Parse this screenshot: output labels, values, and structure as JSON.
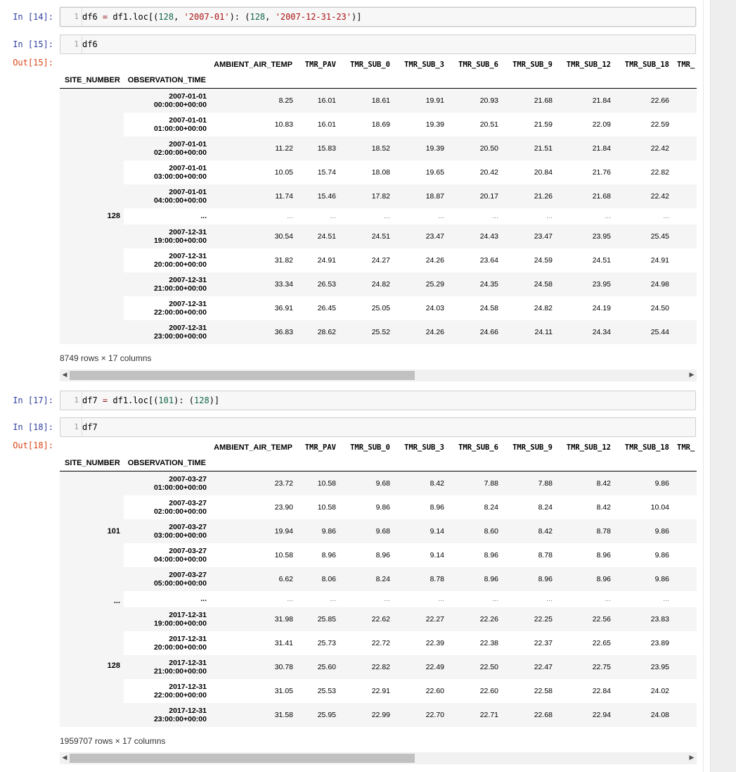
{
  "cells": [
    {
      "type": "code",
      "prompt": "In [14]:",
      "line": "1",
      "code": {
        "var": "df6",
        "op": " = ",
        "pre": "df1.loc[(",
        "n1": "128",
        "s1": "'2007-01'",
        "mid": "): (",
        "n2": "128",
        "s2": "'2007-12-31-23'",
        "post": ")]",
        "comma": ", "
      }
    },
    {
      "type": "code",
      "prompt": "In [15]:",
      "line": "1",
      "code": "df6"
    },
    {
      "type": "code",
      "prompt": "In [17]:",
      "line": "1",
      "code": {
        "var": "df7",
        "op": " = ",
        "pre": "df1.loc[(",
        "n1": "101",
        "mid": "): (",
        "n2": "128",
        "post": ")]"
      }
    },
    {
      "type": "code",
      "prompt": "In [18]:",
      "line": "1",
      "code": "df7"
    }
  ],
  "outputs": [
    {
      "prompt": "Out[15]:",
      "columns": [
        "AMBIENT_AIR_TEMP",
        "TMR_PAV",
        "TMR_SUB_0",
        "TMR_SUB_3",
        "TMR_SUB_6",
        "TMR_SUB_9",
        "TMR_SUB_12",
        "TMR_SUB_18",
        "TMR_"
      ],
      "index_names": [
        "SITE_NUMBER",
        "OBSERVATION_TIME"
      ],
      "level0_labels": [
        {
          "label": "128"
        }
      ],
      "ellipsis": "...",
      "rows": [
        {
          "d": "2007-01-01",
          "t": "00:00:00+00:00",
          "v": [
            "8.25",
            "16.01",
            "18.61",
            "19.91",
            "20.93",
            "21.68",
            "21.84",
            "22.66"
          ]
        },
        {
          "d": "2007-01-01",
          "t": "01:00:00+00:00",
          "v": [
            "10.83",
            "16.01",
            "18.69",
            "19.39",
            "20.51",
            "21.59",
            "22.09",
            "22.59"
          ]
        },
        {
          "d": "2007-01-01",
          "t": "02:00:00+00:00",
          "v": [
            "11.22",
            "15.83",
            "18.52",
            "19.39",
            "20.50",
            "21.51",
            "21.84",
            "22.42"
          ]
        },
        {
          "d": "2007-01-01",
          "t": "03:00:00+00:00",
          "v": [
            "10.05",
            "15.74",
            "18.08",
            "19.65",
            "20.42",
            "20.84",
            "21.76",
            "22.82"
          ]
        },
        {
          "d": "2007-01-01",
          "t": "04:00:00+00:00",
          "v": [
            "11.74",
            "15.46",
            "17.82",
            "18.87",
            "20.17",
            "21.26",
            "21.68",
            "22.42"
          ]
        },
        {
          "ellipsis": true
        },
        {
          "d": "2007-12-31",
          "t": "19:00:00+00:00",
          "v": [
            "30.54",
            "24.51",
            "24.51",
            "23.47",
            "24.43",
            "23.47",
            "23.95",
            "25.45"
          ]
        },
        {
          "d": "2007-12-31",
          "t": "20:00:00+00:00",
          "v": [
            "31.82",
            "24.91",
            "24.27",
            "24.26",
            "23.64",
            "24.59",
            "24.51",
            "24.91"
          ]
        },
        {
          "d": "2007-12-31",
          "t": "21:00:00+00:00",
          "v": [
            "33.34",
            "26.53",
            "24.82",
            "25.29",
            "24.35",
            "24.58",
            "23.95",
            "24.98"
          ]
        },
        {
          "d": "2007-12-31",
          "t": "22:00:00+00:00",
          "v": [
            "36.91",
            "26.45",
            "25.05",
            "24.03",
            "24.58",
            "24.82",
            "24.19",
            "24.50"
          ]
        },
        {
          "d": "2007-12-31",
          "t": "23:00:00+00:00",
          "v": [
            "36.83",
            "28.62",
            "25.52",
            "24.26",
            "24.66",
            "24.11",
            "24.34",
            "25.44"
          ]
        }
      ],
      "summary": "8749 rows × 17 columns"
    },
    {
      "prompt": "Out[18]:",
      "columns": [
        "AMBIENT_AIR_TEMP",
        "TMR_PAV",
        "TMR_SUB_0",
        "TMR_SUB_3",
        "TMR_SUB_6",
        "TMR_SUB_9",
        "TMR_SUB_12",
        "TMR_SUB_18",
        "TMR_"
      ],
      "index_names": [
        "SITE_NUMBER",
        "OBSERVATION_TIME"
      ],
      "level0_labels": [
        {
          "label": "101"
        },
        {
          "label": "..."
        },
        {
          "label": "128"
        }
      ],
      "ellipsis": "...",
      "rows": [
        {
          "d": "2007-03-27",
          "t": "01:00:00+00:00",
          "v": [
            "23.72",
            "10.58",
            "9.68",
            "8.42",
            "7.88",
            "7.88",
            "8.42",
            "9.86"
          ]
        },
        {
          "d": "2007-03-27",
          "t": "02:00:00+00:00",
          "v": [
            "23.90",
            "10.58",
            "9.86",
            "8.96",
            "8.24",
            "8.24",
            "8.42",
            "10.04"
          ]
        },
        {
          "d": "2007-03-27",
          "t": "03:00:00+00:00",
          "v": [
            "19.94",
            "9.86",
            "9.68",
            "9.14",
            "8.60",
            "8.42",
            "8.78",
            "9.86"
          ]
        },
        {
          "d": "2007-03-27",
          "t": "04:00:00+00:00",
          "v": [
            "10.58",
            "8.96",
            "8.96",
            "9.14",
            "8.96",
            "8.78",
            "8.96",
            "9.86"
          ]
        },
        {
          "d": "2007-03-27",
          "t": "05:00:00+00:00",
          "v": [
            "6.62",
            "8.06",
            "8.24",
            "8.78",
            "8.96",
            "8.96",
            "8.96",
            "9.86"
          ]
        },
        {
          "ellipsis": true
        },
        {
          "d": "2017-12-31",
          "t": "19:00:00+00:00",
          "v": [
            "31.98",
            "25.85",
            "22.62",
            "22.27",
            "22.26",
            "22.25",
            "22.56",
            "23.83"
          ]
        },
        {
          "d": "2017-12-31",
          "t": "20:00:00+00:00",
          "v": [
            "31.41",
            "25.73",
            "22.72",
            "22.39",
            "22.38",
            "22.37",
            "22.65",
            "23.89"
          ]
        },
        {
          "d": "2017-12-31",
          "t": "21:00:00+00:00",
          "v": [
            "30.78",
            "25.60",
            "22.82",
            "22.49",
            "22.50",
            "22.47",
            "22.75",
            "23.95"
          ]
        },
        {
          "d": "2017-12-31",
          "t": "22:00:00+00:00",
          "v": [
            "31.05",
            "25.53",
            "22.91",
            "22.60",
            "22.60",
            "22.58",
            "22.84",
            "24.02"
          ]
        },
        {
          "d": "2017-12-31",
          "t": "23:00:00+00:00",
          "v": [
            "31.58",
            "25.95",
            "22.99",
            "22.70",
            "22.71",
            "22.68",
            "22.94",
            "24.08"
          ]
        }
      ],
      "summary": "1959707 rows × 17 columns"
    }
  ],
  "scrollbar": {
    "left_arrow": "◀",
    "right_arrow": "▶"
  }
}
